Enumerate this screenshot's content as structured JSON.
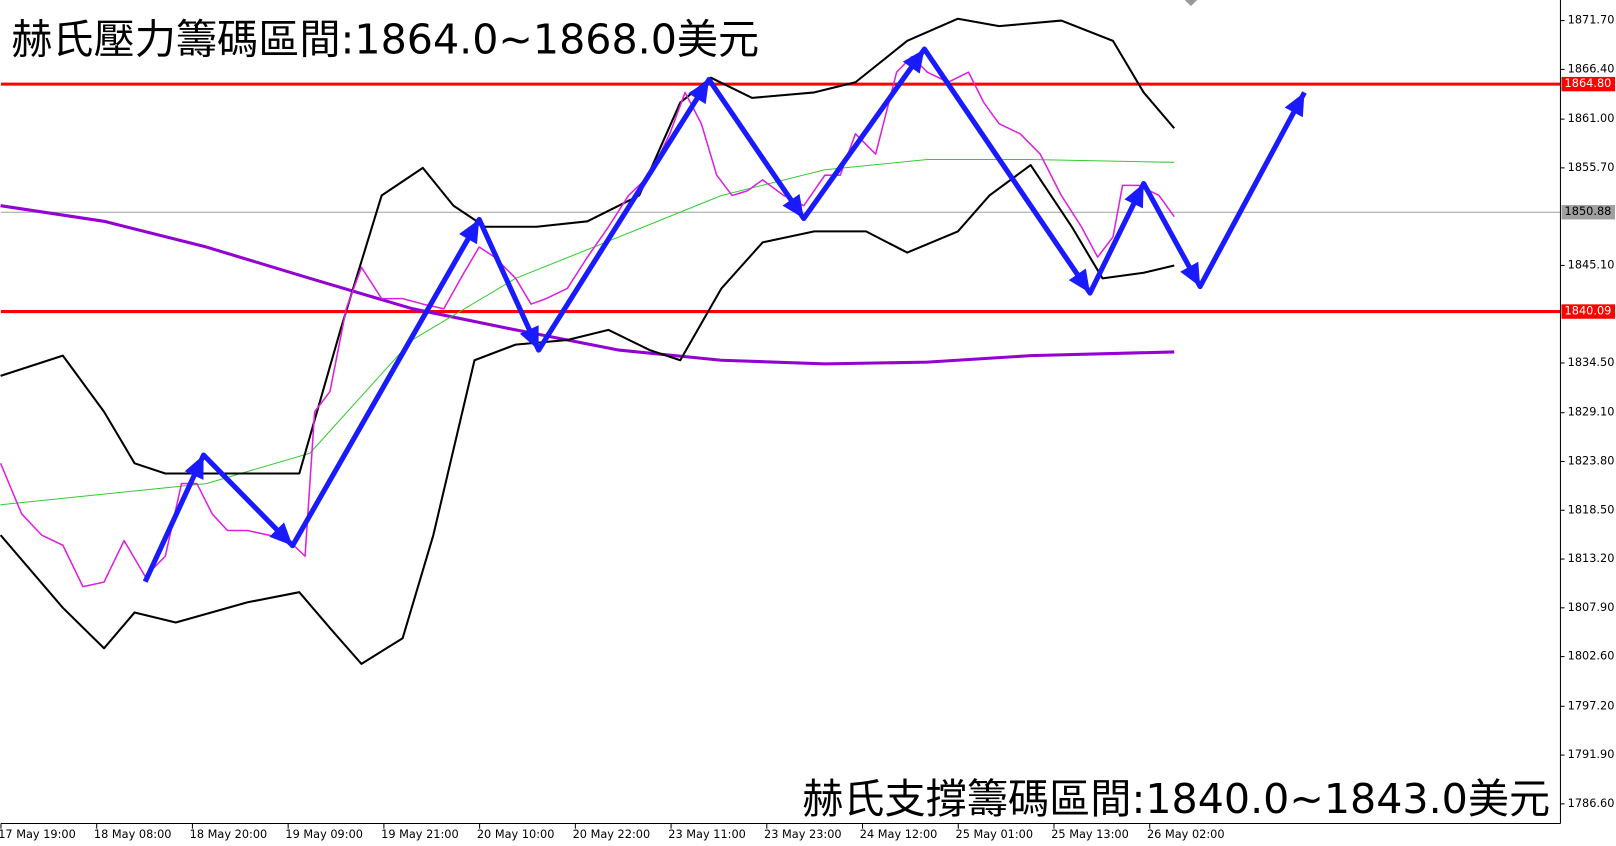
{
  "chart_data": {
    "type": "line",
    "title": "赫氏壓力籌碼區間:1864.0~1868.0美元",
    "annotation": "赫氏支撐籌碼區間:1840.0~1843.0美元",
    "xlim": [
      -0.376,
      15.914
    ],
    "ylim": [
      1784.47,
      1873.94
    ],
    "grid": false,
    "xticks": [
      {
        "value": 0,
        "label": "17 May 19:00"
      },
      {
        "value": 1,
        "label": "18 May 08:00"
      },
      {
        "value": 2,
        "label": "18 May 20:00"
      },
      {
        "value": 3,
        "label": "19 May 09:00"
      },
      {
        "value": 4,
        "label": "19 May 21:00"
      },
      {
        "value": 5,
        "label": "20 May 10:00"
      },
      {
        "value": 6,
        "label": "20 May 22:00"
      },
      {
        "value": 7,
        "label": "23 May 11:00"
      },
      {
        "value": 8,
        "label": "23 May 23:00"
      },
      {
        "value": 9,
        "label": "24 May 12:00"
      },
      {
        "value": 10,
        "label": "25 May 01:00"
      },
      {
        "value": 11,
        "label": "25 May 13:00"
      },
      {
        "value": 12,
        "label": "26 May 02:00"
      }
    ],
    "yticks": [
      {
        "value": 1871.7,
        "label": "1871.70"
      },
      {
        "value": 1866.4,
        "label": "1866.40"
      },
      {
        "value": 1861.0,
        "label": "1861.00"
      },
      {
        "value": 1855.7,
        "label": "1855.70"
      },
      {
        "value": 1845.1,
        "label": "1845.10"
      },
      {
        "value": 1834.5,
        "label": "1834.50"
      },
      {
        "value": 1829.1,
        "label": "1829.10"
      },
      {
        "value": 1823.8,
        "label": "1823.80"
      },
      {
        "value": 1818.5,
        "label": "1818.50"
      },
      {
        "value": 1813.2,
        "label": "1813.20"
      },
      {
        "value": 1807.9,
        "label": "1807.90"
      },
      {
        "value": 1802.6,
        "label": "1802.60"
      },
      {
        "value": 1797.2,
        "label": "1797.20"
      },
      {
        "value": 1791.9,
        "label": "1791.90"
      },
      {
        "value": 1786.6,
        "label": "1786.60"
      }
    ],
    "reference_lines": [
      {
        "value": 1864.8,
        "label": "1864.80",
        "color": "#ff0000"
      },
      {
        "value": 1850.88,
        "label": "1850.88",
        "color": "#a0a0a0"
      },
      {
        "value": 1840.09,
        "label": "1840.09",
        "color": "#ff0000"
      }
    ],
    "series": [
      {
        "color": "#9400d3",
        "width": 3,
        "x": [
          -0.38,
          0.7,
          1.77,
          2.85,
          3.92,
          5.0,
          6.08,
          7.15,
          8.23,
          9.3,
          10.38,
          11.88
        ],
        "values": [
          1851.6,
          1849.9,
          1847.1,
          1843.7,
          1840.4,
          1838.1,
          1835.9,
          1834.8,
          1834.4,
          1834.6,
          1835.3,
          1835.7
        ]
      },
      {
        "color": "#33cc33",
        "width": 1,
        "x": [
          -0.38,
          1.77,
          2.85,
          3.92,
          5.0,
          6.08,
          7.15,
          8.23,
          9.3,
          10.38,
          11.88
        ],
        "values": [
          1819.1,
          1821.4,
          1824.7,
          1837.0,
          1843.7,
          1848.2,
          1852.7,
          1855.5,
          1856.6,
          1856.6,
          1856.3
        ]
      },
      {
        "color": "#000000",
        "width": 2,
        "x": [
          -0.38,
          0.27,
          0.7,
          1.02,
          1.34,
          1.77,
          2.2,
          2.74,
          3.17,
          3.6,
          4.03,
          4.35,
          4.68,
          5.22,
          5.75,
          6.29,
          6.72,
          7.04,
          7.47,
          8.12,
          8.55,
          9.09,
          9.62,
          10.05,
          10.7,
          11.24,
          11.56,
          11.88
        ],
        "values": [
          1833.1,
          1835.3,
          1829.2,
          1823.6,
          1822.5,
          1822.5,
          1822.5,
          1822.5,
          1838.1,
          1852.7,
          1855.7,
          1851.6,
          1849.3,
          1849.3,
          1849.9,
          1852.7,
          1862.8,
          1865.5,
          1863.3,
          1863.9,
          1865.0,
          1869.5,
          1871.9,
          1871.1,
          1871.7,
          1869.5,
          1863.9,
          1860.0
        ]
      },
      {
        "color": "#000000",
        "width": 2,
        "x": [
          -0.38,
          0.27,
          0.7,
          1.02,
          1.45,
          2.2,
          2.74,
          3.06,
          3.39,
          3.82,
          4.14,
          4.57,
          5.0,
          5.54,
          5.97,
          6.4,
          6.72,
          7.15,
          7.58,
          8.12,
          8.66,
          9.09,
          9.62,
          9.95,
          10.38,
          10.81,
          11.13,
          11.56,
          11.88
        ],
        "values": [
          1815.8,
          1807.9,
          1803.5,
          1807.4,
          1806.3,
          1808.5,
          1809.6,
          1805.7,
          1801.8,
          1804.6,
          1815.8,
          1834.8,
          1836.5,
          1837.0,
          1838.1,
          1835.9,
          1834.8,
          1842.6,
          1847.6,
          1848.8,
          1848.8,
          1846.5,
          1848.8,
          1852.7,
          1856.0,
          1849.3,
          1843.7,
          1844.3,
          1845.1
        ]
      },
      {
        "color": "#e020e0",
        "width": 1.5,
        "x": [
          -0.38,
          -0.16,
          0.05,
          0.27,
          0.48,
          0.7,
          0.91,
          1.13,
          1.34,
          1.51,
          1.67,
          1.83,
          1.99,
          2.2,
          2.42,
          2.63,
          2.8,
          2.9,
          3.06,
          3.23,
          3.39,
          3.6,
          3.82,
          4.03,
          4.25,
          4.46,
          4.62,
          4.78,
          5.0,
          5.16,
          5.32,
          5.54,
          5.75,
          5.97,
          6.18,
          6.4,
          6.61,
          6.77,
          6.94,
          7.1,
          7.26,
          7.42,
          7.58,
          7.8,
          8.01,
          8.23,
          8.39,
          8.55,
          8.76,
          8.98,
          9.14,
          9.3,
          9.52,
          9.73,
          9.89,
          10.05,
          10.27,
          10.48,
          10.7,
          10.91,
          11.08,
          11.24,
          11.34,
          11.51,
          11.72,
          11.88
        ],
        "values": [
          1823.6,
          1818.1,
          1815.8,
          1814.7,
          1810.2,
          1810.7,
          1815.2,
          1811.3,
          1813.5,
          1821.4,
          1821.4,
          1818.1,
          1816.3,
          1816.3,
          1815.8,
          1815.2,
          1813.5,
          1829.2,
          1831.4,
          1840.4,
          1844.9,
          1841.5,
          1841.5,
          1840.9,
          1840.4,
          1844.3,
          1847.1,
          1846.0,
          1843.7,
          1840.9,
          1841.5,
          1842.6,
          1846.0,
          1849.3,
          1852.7,
          1854.9,
          1859.4,
          1863.9,
          1860.5,
          1854.9,
          1852.7,
          1853.2,
          1854.4,
          1852.7,
          1851.6,
          1854.9,
          1854.9,
          1859.4,
          1857.2,
          1866.1,
          1867.8,
          1866.1,
          1865.0,
          1866.1,
          1862.8,
          1860.5,
          1859.4,
          1857.2,
          1852.7,
          1849.3,
          1846.0,
          1848.2,
          1853.8,
          1853.8,
          1852.7,
          1850.4
        ]
      },
      {
        "color": "#1a1aff",
        "width": 5,
        "arrows": true,
        "x": [
          1.13,
          1.74,
          2.67,
          4.62,
          5.24,
          7.02,
          8.01,
          9.27,
          11.0,
          11.56,
          12.15,
          13.24
        ],
        "values": [
          1810.74,
          1824.5,
          1814.65,
          1850.1,
          1835.9,
          1865.3,
          1850.2,
          1868.6,
          1842.1,
          1854.0,
          1842.8,
          1863.9
        ]
      }
    ]
  }
}
